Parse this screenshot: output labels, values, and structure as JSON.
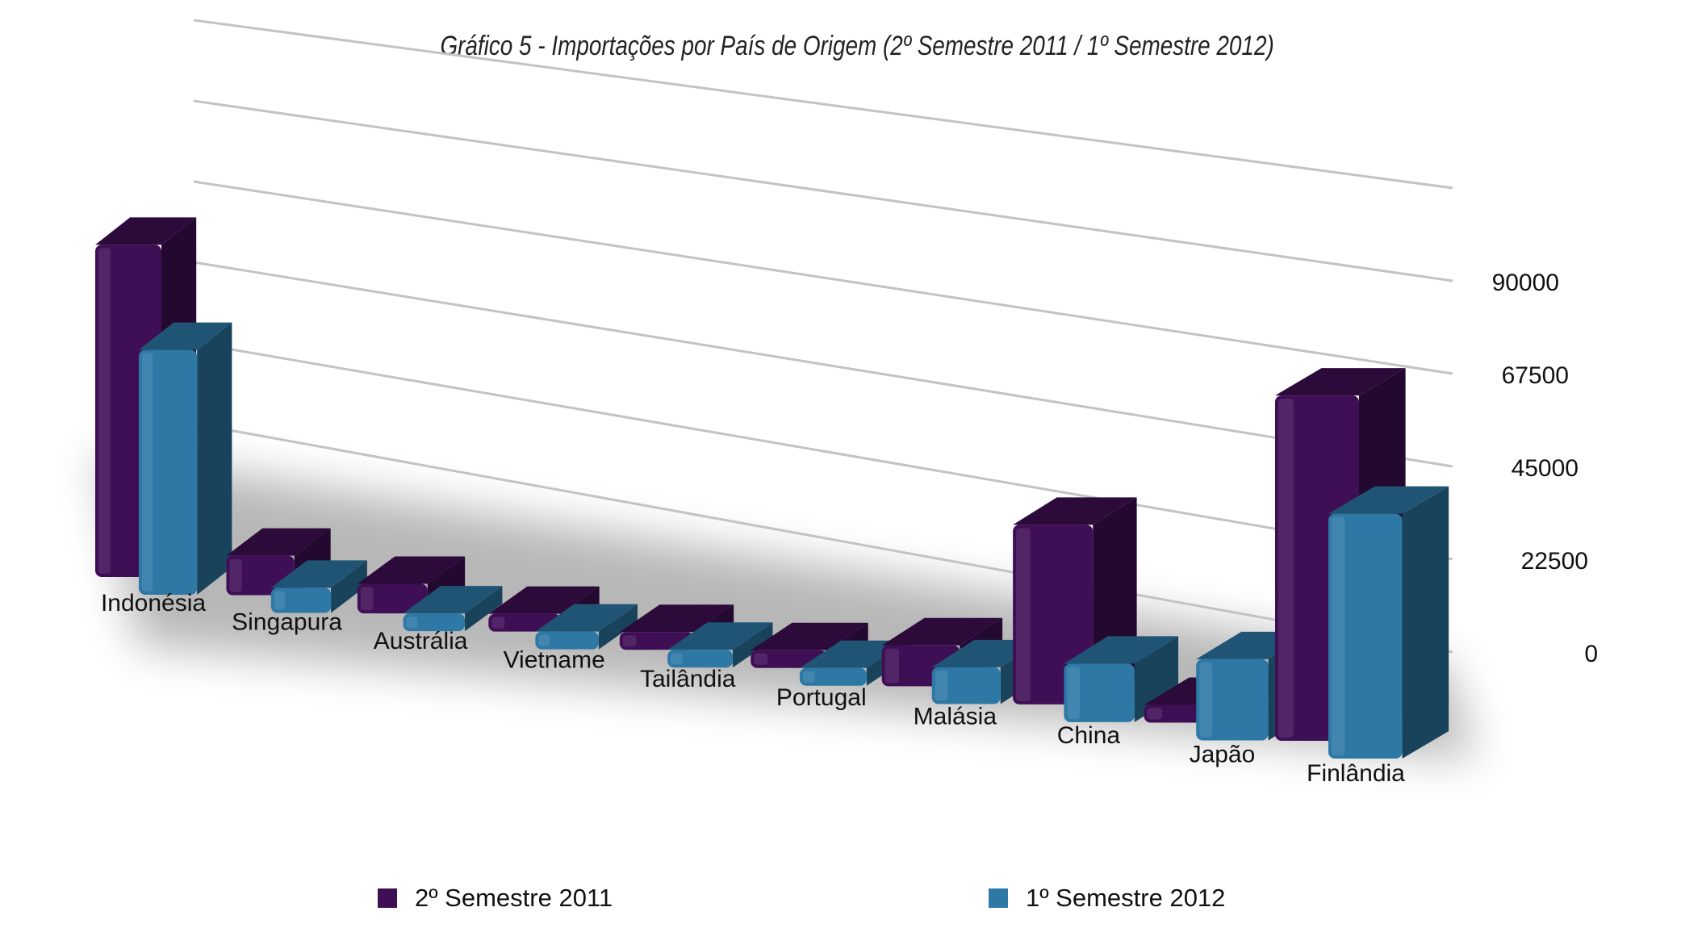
{
  "chart_data": {
    "type": "bar",
    "title": "Gráfico 5 - Importações por País de Origem (2º Semestre 2011 / 1º Semestre 2012)",
    "categories": [
      "Indonésia",
      "Singapura",
      "Austrália",
      "Vietname",
      "Tailândia",
      "Portugal",
      "Malásia",
      "China",
      "Japão",
      "Finlândia"
    ],
    "series": [
      {
        "name": "2º Semestre 2011",
        "color": "#3f0f55",
        "values": [
          95000,
          11000,
          8000,
          2500,
          4000,
          1500,
          10000,
          43000,
          3500,
          79000
        ]
      },
      {
        "name": "1º Semestre 2012",
        "color": "#2e78a6",
        "values": [
          70000,
          7000,
          2500,
          2000,
          1500,
          1000,
          9000,
          14000,
          19000,
          56000
        ]
      }
    ],
    "yticks": [
      0,
      22500,
      45000,
      67500,
      90000
    ],
    "ylim": [
      0,
      112500
    ],
    "grid": true,
    "legend_position": "bottom",
    "view": "3d"
  }
}
